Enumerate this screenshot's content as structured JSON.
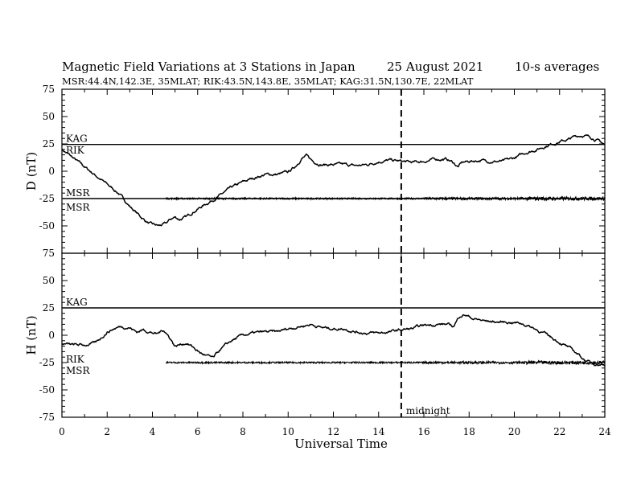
{
  "header": {
    "title": "Magnetic Field Variations at 3 Stations in Japan",
    "date": "25  August  2021",
    "averaging": "10-s averages",
    "stations": "MSR:44.4N,142.3E, 35MLAT;  RIK:43.5N,143.8E, 35MLAT;  KAG:31.5N,130.7E, 22MLAT"
  },
  "chart_data": [
    {
      "type": "line",
      "panel": "D",
      "ylabel": "D (nT)",
      "ylim": [
        -75,
        75
      ],
      "yticks": [
        75,
        50,
        25,
        0,
        -25,
        -50,
        -75
      ],
      "xlim": [
        0,
        24
      ],
      "reference_lines": [
        {
          "name": "KAG",
          "y": 24.5
        },
        {
          "name": "MSR",
          "y": -25
        }
      ],
      "series": [
        {
          "name": "RIK",
          "x": [
            0,
            0.5,
            1,
            1.5,
            2,
            2.5,
            3,
            3.5,
            3.8,
            4,
            4.3,
            4.6,
            4.8,
            5.0,
            5.2,
            5.5,
            5.8,
            6.2,
            6.6,
            7,
            7.5,
            8,
            8.5,
            9,
            9.5,
            10,
            10.3,
            10.6,
            10.8,
            11.1,
            11.5,
            12,
            12.5,
            13,
            13.5,
            14,
            14.5,
            15,
            15.5,
            16,
            16.5,
            17,
            17.3,
            17.5,
            17.7,
            18,
            18.5,
            19,
            19.5,
            20,
            20.5,
            21,
            21.5,
            22,
            22.4,
            22.7,
            23,
            23.4,
            23.8,
            24
          ],
          "values": [
            20,
            12,
            4,
            -4,
            -12,
            -20,
            -32,
            -42,
            -47,
            -49,
            -50,
            -48,
            -44,
            -42,
            -44,
            -42,
            -37,
            -32,
            -27,
            -22,
            -15,
            -10,
            -6,
            -3,
            -3,
            -1,
            4,
            12,
            14,
            9,
            6,
            6,
            6,
            5,
            6,
            9,
            10,
            9,
            8,
            9,
            11,
            11,
            8,
            4,
            8,
            9,
            10,
            9,
            9,
            12,
            17,
            20,
            24,
            27,
            29,
            32,
            33,
            31,
            27,
            24
          ]
        },
        {
          "name": "MSR",
          "x": [
            4.6,
            24
          ],
          "values": [
            -25,
            -25
          ]
        }
      ]
    },
    {
      "type": "line",
      "panel": "H",
      "ylabel": "H (nT)",
      "xlabel": "Universal Time",
      "ylim": [
        -75,
        75
      ],
      "yticks": [
        75,
        50,
        25,
        0,
        -25,
        -50,
        -75
      ],
      "xlim": [
        0,
        24
      ],
      "xticks": [
        0,
        2,
        4,
        6,
        8,
        10,
        12,
        14,
        16,
        18,
        20,
        22,
        24
      ],
      "reference_lines": [
        {
          "name": "KAG",
          "y": 25
        }
      ],
      "series": [
        {
          "name": "RIK",
          "x": [
            0,
            0.5,
            1,
            1.5,
            2,
            2.3,
            2.6,
            3,
            3.3,
            3.6,
            3.9,
            4.2,
            4.5,
            4.8,
            5.0,
            5.3,
            5.5,
            5.8,
            6.1,
            6.4,
            6.7,
            7,
            7.5,
            8,
            8.5,
            9,
            9.5,
            10,
            10.5,
            11,
            11.5,
            12,
            12.5,
            13,
            13.5,
            14,
            14.5,
            15,
            15.5,
            16,
            16.5,
            17,
            17.3,
            17.6,
            17.8,
            18.2,
            18.7,
            19.3,
            19.8,
            20.3,
            20.8,
            21.3,
            21.8,
            22.3,
            22.8,
            23.2,
            23.6,
            24
          ],
          "values": [
            -8,
            -9,
            -9,
            -7,
            3,
            6,
            8,
            7,
            3,
            5,
            3,
            1,
            5,
            -3,
            -10,
            -8,
            -7,
            -11,
            -16,
            -19,
            -21,
            -13,
            -5,
            0,
            2,
            3,
            3,
            6,
            8,
            10,
            7,
            6,
            6,
            3,
            2,
            2,
            3,
            5,
            6,
            9,
            10,
            10,
            8,
            18,
            19,
            15,
            13,
            12,
            12,
            11,
            7,
            2,
            -4,
            -10,
            -17,
            -24,
            -26,
            -27
          ]
        },
        {
          "name": "MSR",
          "x": [
            4.6,
            24
          ],
          "values": [
            -25,
            -25
          ]
        }
      ]
    }
  ],
  "annotations": {
    "midnight_ut": 15,
    "midnight_label": "midnight"
  }
}
